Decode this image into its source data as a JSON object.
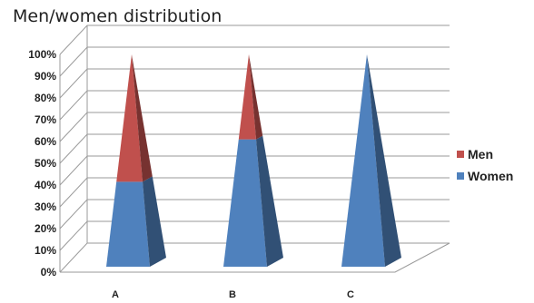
{
  "chart_data": {
    "type": "bar",
    "title": "Men/women distribution",
    "xlabel": "",
    "ylabel": "",
    "stacked": true,
    "shape": "3d-pyramid",
    "categories": [
      "A",
      "B",
      "C"
    ],
    "ylim": [
      0,
      100
    ],
    "y_ticks": [
      "0%",
      "10%",
      "20%",
      "30%",
      "40%",
      "50%",
      "60%",
      "70%",
      "80%",
      "90%",
      "100%"
    ],
    "series": [
      {
        "name": "Women",
        "color": "#4F81BD",
        "values": [
          40,
          60,
          100
        ]
      },
      {
        "name": "Men",
        "color": "#C0504D",
        "values": [
          60,
          40,
          0
        ]
      }
    ],
    "legend": {
      "position": "right",
      "order": [
        "Men",
        "Women"
      ]
    },
    "grid": true
  }
}
